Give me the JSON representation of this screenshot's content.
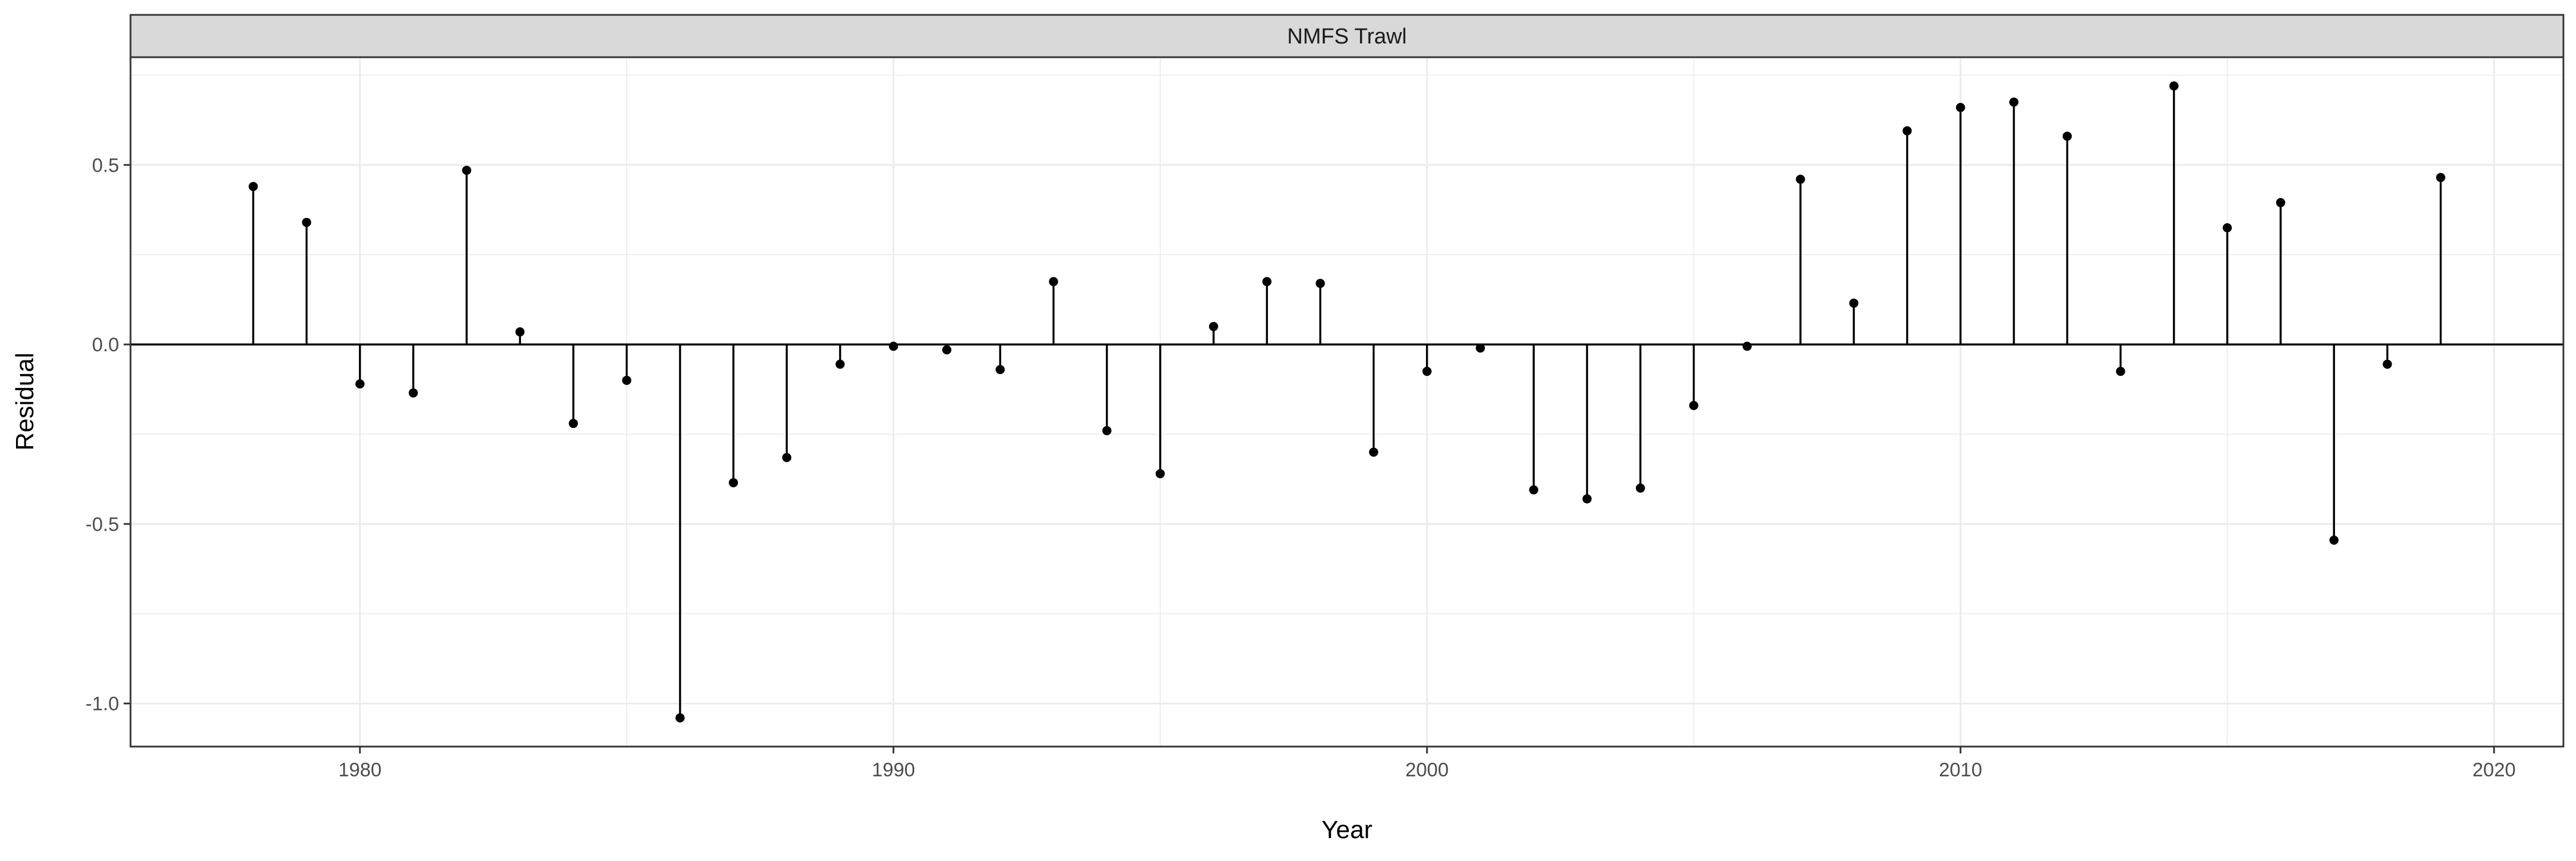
{
  "chart_data": {
    "type": "lollipop",
    "facet_label": "NMFS Trawl",
    "xlabel": "Year",
    "ylabel": "Residual",
    "xlim": [
      1975.7,
      2021.3
    ],
    "ylim": [
      -1.12,
      0.8
    ],
    "x_ticks": [
      1980,
      1990,
      2000,
      2010,
      2020
    ],
    "y_ticks": [
      -1.0,
      -0.5,
      0.0,
      0.5
    ],
    "y_tick_labels": [
      "-1.0",
      "-0.5",
      "0.0",
      "0.5"
    ],
    "grid": true,
    "baseline": 0,
    "x": [
      1978,
      1979,
      1980,
      1981,
      1982,
      1983,
      1984,
      1985,
      1986,
      1987,
      1988,
      1989,
      1990,
      1991,
      1992,
      1993,
      1994,
      1995,
      1996,
      1997,
      1998,
      1999,
      2000,
      2001,
      2002,
      2003,
      2004,
      2005,
      2006,
      2007,
      2008,
      2009,
      2010,
      2011,
      2012,
      2013,
      2014,
      2015,
      2016,
      2017,
      2018,
      2019
    ],
    "y": [
      0.44,
      0.34,
      -0.11,
      -0.135,
      0.485,
      0.035,
      -0.22,
      -0.1,
      -1.04,
      -0.385,
      -0.315,
      -0.055,
      -0.005,
      -0.015,
      -0.07,
      0.175,
      -0.24,
      -0.36,
      0.05,
      0.175,
      0.17,
      -0.3,
      -0.075,
      -0.01,
      -0.405,
      -0.43,
      -0.4,
      -0.17,
      -0.005,
      0.46,
      0.115,
      0.595,
      0.66,
      0.675,
      0.58,
      -0.075,
      0.72,
      0.325,
      0.395,
      -0.545,
      -0.055,
      0.465
    ],
    "colors": {
      "points": "#000000",
      "strip_fill": "#d9d9d9",
      "grid": "#ebebeb",
      "panel_border": "#333333"
    }
  }
}
